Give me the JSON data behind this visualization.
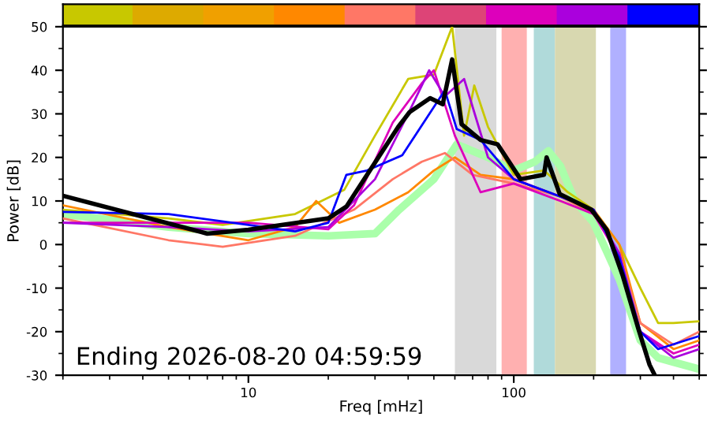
{
  "chart_data": {
    "type": "line",
    "xlabel": "Freq [mHz]",
    "ylabel": "Power [dB]",
    "log": "x",
    "xlim": [
      2,
      500
    ],
    "xticks": [
      10,
      100
    ],
    "ylim": [
      -30,
      50
    ],
    "yticks": [
      -30,
      -20,
      -10,
      0,
      10,
      20,
      30,
      40,
      50
    ],
    "grid": false,
    "legend": false,
    "marker": "none",
    "line_style": "solid",
    "annotations": [
      "Ending 2026-08-20 04:59:59"
    ],
    "bands": [
      {
        "axis": "x",
        "from": 60,
        "to": 86,
        "color": "#d9d9d9"
      },
      {
        "axis": "x",
        "from": 90,
        "to": 112,
        "color": "#ffb0b0"
      },
      {
        "axis": "x",
        "from": 119,
        "to": 143,
        "color": "#b0dada"
      },
      {
        "axis": "x",
        "from": 143,
        "to": 204,
        "color": "#d8d8b0"
      },
      {
        "axis": "x",
        "from": 231,
        "to": 265,
        "color": "#b0b0ff"
      }
    ],
    "series": [
      {
        "color": "#aaffaa",
        "x": [
          2,
          5,
          10,
          20,
          30,
          37,
          50,
          61,
          80,
          100,
          120,
          135,
          150,
          170,
          200,
          250,
          300,
          350,
          400,
          500
        ],
        "values": [
          7,
          4,
          2.5,
          2,
          2.5,
          8,
          15,
          23,
          20,
          17,
          19,
          21.5,
          18,
          10,
          5,
          -8,
          -22,
          -26,
          -27,
          -28.6
        ]
      },
      {
        "color": "#c8c800",
        "x": [
          2,
          5,
          8,
          15,
          23,
          30,
          40,
          50,
          58.6,
          65,
          71,
          80,
          100,
          130,
          160,
          200,
          250,
          300,
          350,
          400,
          500
        ],
        "values": [
          8,
          6,
          4.5,
          7,
          12.6,
          25,
          38,
          39,
          50,
          25,
          36.5,
          27,
          16,
          17,
          12,
          8,
          0,
          -10,
          -18,
          -18,
          -17.6
        ]
      },
      {
        "color": "#ff8800",
        "x": [
          2,
          5,
          10,
          15,
          18,
          22,
          30,
          40,
          50,
          60,
          75,
          100,
          150,
          200,
          250,
          300,
          400,
          500
        ],
        "values": [
          9,
          4,
          1,
          4,
          10,
          5,
          8,
          12,
          17,
          20,
          16,
          15,
          11,
          8,
          0,
          -18,
          -24,
          -22
        ]
      },
      {
        "color": "#ff7766",
        "x": [
          2,
          5,
          8,
          15,
          25,
          35,
          45,
          55,
          70,
          100,
          150,
          200,
          250,
          300,
          400,
          500
        ],
        "values": [
          6,
          1,
          -0.5,
          2,
          8,
          15,
          19,
          21,
          16,
          14,
          11,
          7,
          -2,
          -18,
          -23,
          -20
        ]
      },
      {
        "color": "#dd00bb",
        "x": [
          2,
          5,
          10,
          20,
          25,
          35,
          45,
          50,
          60,
          75,
          100,
          150,
          200,
          250,
          300,
          400,
          500
        ],
        "values": [
          5,
          5,
          5,
          3.5,
          9,
          28,
          37,
          40,
          25,
          12,
          14,
          10,
          7,
          -3,
          -20,
          -25,
          -23
        ]
      },
      {
        "color": "#aa00dd",
        "x": [
          2,
          5,
          10,
          20,
          30,
          40,
          48,
          55,
          65,
          80,
          100,
          150,
          200,
          250,
          300,
          400,
          500
        ],
        "values": [
          5,
          4,
          3,
          4,
          15,
          30,
          40,
          34,
          38,
          20,
          15,
          11,
          8,
          -2,
          -20,
          -26,
          -24
        ]
      },
      {
        "color": "#0000ff",
        "x": [
          2,
          5,
          10,
          15,
          20,
          23.4,
          28,
          38,
          55,
          61,
          75,
          100,
          150,
          200,
          250,
          300,
          350,
          500
        ],
        "values": [
          7.5,
          7,
          4.5,
          3,
          5,
          16,
          17,
          20.5,
          35.4,
          26.5,
          24,
          15,
          11,
          8,
          -3,
          -20,
          -24,
          -21
        ]
      },
      {
        "color": "#000000",
        "x": [
          2,
          7,
          10,
          20,
          23.4,
          36.7,
          40.5,
          48.4,
          54,
          58.6,
          63.6,
          75,
          87,
          106,
          130,
          133,
          149,
          196,
          224,
          257,
          295,
          325,
          340
        ],
        "values": [
          11.2,
          2.5,
          3.4,
          6,
          8.7,
          27,
          30.4,
          33.6,
          32.2,
          42.5,
          27.6,
          24,
          23,
          15,
          16,
          20,
          11.6,
          8,
          3.4,
          -7,
          -19.4,
          -27.6,
          -30
        ]
      }
    ]
  }
}
